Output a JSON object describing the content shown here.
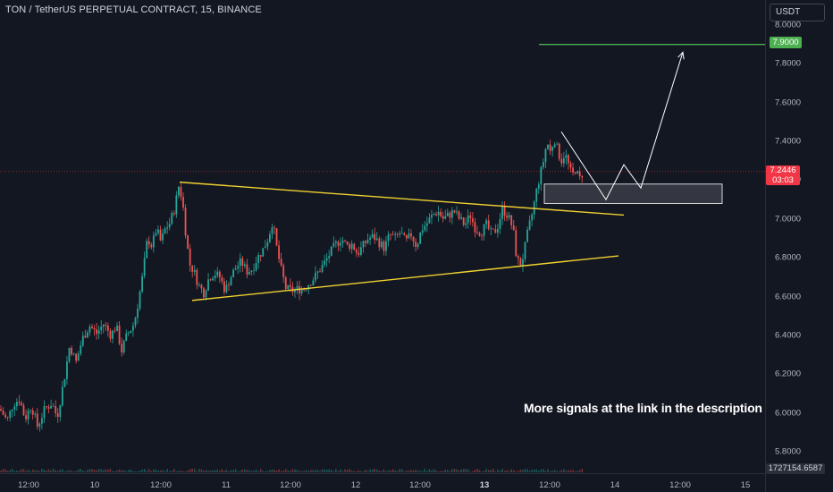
{
  "header": {
    "title": "TON / TetherUS PERPETUAL CONTRACT, 15, BINANCE",
    "currency": "USDT"
  },
  "annotation": {
    "note": "More signals at the link in the description"
  },
  "price_scale": {
    "current_price": "7.2446",
    "countdown": "03:03",
    "target_price": "7.9000",
    "volume_readout": "1727154.6587"
  },
  "colors": {
    "background": "#131722",
    "up_candle": "#26a69a",
    "down_candle": "#ef5350",
    "trendline": "#f0d130",
    "target_line": "#4caf50",
    "price_badge": "#f23645",
    "projection": "#ffffff"
  },
  "chart_data": {
    "type": "candlestick",
    "symbol": "TON / TetherUS PERPETUAL CONTRACT",
    "interval": "15",
    "exchange": "BINANCE",
    "y_ticks": [
      "8.0000",
      "7.8000",
      "7.6000",
      "7.4000",
      "7.2000",
      "7.0000",
      "6.8000",
      "6.6000",
      "6.4000",
      "6.2000",
      "6.0000",
      "5.8000"
    ],
    "x_ticks": [
      {
        "label": "12:00",
        "bold": false
      },
      {
        "label": "10",
        "bold": false
      },
      {
        "label": "12:00",
        "bold": false
      },
      {
        "label": "11",
        "bold": false
      },
      {
        "label": "12:00",
        "bold": false
      },
      {
        "label": "12",
        "bold": false
      },
      {
        "label": "12:00",
        "bold": false
      },
      {
        "label": "13",
        "bold": true
      },
      {
        "label": "12:00",
        "bold": false
      },
      {
        "label": "14",
        "bold": false
      },
      {
        "label": "12:00",
        "bold": false
      },
      {
        "label": "15",
        "bold": false
      }
    ],
    "ylim": [
      5.75,
      8.05
    ],
    "price_path": [
      [
        0,
        6.02
      ],
      [
        8,
        5.96
      ],
      [
        15,
        6.05
      ],
      [
        22,
        6.07
      ],
      [
        28,
        5.97
      ],
      [
        35,
        6.04
      ],
      [
        42,
        5.93
      ],
      [
        50,
        6.02
      ],
      [
        58,
        6.05
      ],
      [
        64,
        5.98
      ],
      [
        72,
        6.18
      ],
      [
        78,
        6.35
      ],
      [
        85,
        6.26
      ],
      [
        92,
        6.38
      ],
      [
        100,
        6.45
      ],
      [
        108,
        6.41
      ],
      [
        116,
        6.46
      ],
      [
        124,
        6.4
      ],
      [
        130,
        6.45
      ],
      [
        136,
        6.32
      ],
      [
        142,
        6.4
      ],
      [
        150,
        6.46
      ],
      [
        155,
        6.58
      ],
      [
        160,
        6.72
      ],
      [
        165,
        6.9
      ],
      [
        170,
        6.86
      ],
      [
        175,
        6.95
      ],
      [
        180,
        6.88
      ],
      [
        185,
        6.95
      ],
      [
        190,
        6.98
      ],
      [
        195,
        7.05
      ],
      [
        200,
        7.17
      ],
      [
        204,
        7.1
      ],
      [
        208,
        6.92
      ],
      [
        212,
        6.77
      ],
      [
        217,
        6.73
      ],
      [
        222,
        6.66
      ],
      [
        228,
        6.62
      ],
      [
        234,
        6.7
      ],
      [
        240,
        6.72
      ],
      [
        246,
        6.7
      ],
      [
        252,
        6.63
      ],
      [
        258,
        6.7
      ],
      [
        264,
        6.75
      ],
      [
        270,
        6.78
      ],
      [
        276,
        6.73
      ],
      [
        282,
        6.74
      ],
      [
        288,
        6.8
      ],
      [
        294,
        6.84
      ],
      [
        300,
        6.9
      ],
      [
        305,
        6.99
      ],
      [
        310,
        6.84
      ],
      [
        315,
        6.73
      ],
      [
        320,
        6.64
      ],
      [
        328,
        6.63
      ],
      [
        334,
        6.64
      ],
      [
        340,
        6.64
      ],
      [
        346,
        6.67
      ],
      [
        352,
        6.7
      ],
      [
        358,
        6.74
      ],
      [
        364,
        6.78
      ],
      [
        370,
        6.83
      ],
      [
        376,
        6.87
      ],
      [
        382,
        6.9
      ],
      [
        388,
        6.86
      ],
      [
        394,
        6.87
      ],
      [
        400,
        6.82
      ],
      [
        406,
        6.86
      ],
      [
        412,
        6.9
      ],
      [
        418,
        6.91
      ],
      [
        424,
        6.88
      ],
      [
        430,
        6.85
      ],
      [
        436,
        6.92
      ],
      [
        442,
        6.9
      ],
      [
        448,
        6.93
      ],
      [
        454,
        6.88
      ],
      [
        460,
        6.92
      ],
      [
        466,
        6.86
      ],
      [
        472,
        6.95
      ],
      [
        478,
        6.98
      ],
      [
        484,
        7.02
      ],
      [
        490,
        7.04
      ],
      [
        496,
        7.0
      ],
      [
        502,
        7.02
      ],
      [
        508,
        7.04
      ],
      [
        514,
        7.0
      ],
      [
        520,
        6.97
      ],
      [
        526,
        7.02
      ],
      [
        532,
        6.95
      ],
      [
        538,
        6.93
      ],
      [
        544,
        6.97
      ],
      [
        550,
        6.92
      ],
      [
        556,
        6.95
      ],
      [
        562,
        7.05
      ],
      [
        568,
        7.02
      ],
      [
        574,
        6.95
      ],
      [
        578,
        6.8
      ],
      [
        582,
        6.76
      ],
      [
        586,
        6.82
      ],
      [
        590,
        6.92
      ],
      [
        596,
        7.04
      ],
      [
        600,
        7.14
      ],
      [
        604,
        7.22
      ],
      [
        608,
        7.3
      ],
      [
        612,
        7.4
      ],
      [
        616,
        7.34
      ],
      [
        620,
        7.42
      ],
      [
        624,
        7.35
      ],
      [
        628,
        7.3
      ],
      [
        632,
        7.34
      ],
      [
        636,
        7.28
      ],
      [
        640,
        7.22
      ],
      [
        644,
        7.26
      ],
      [
        648,
        7.2
      ],
      [
        652,
        7.24
      ]
    ],
    "lower_trendline": [
      [
        215,
        6.58
      ],
      [
        692,
        6.81
      ]
    ],
    "upper_trendline": [
      [
        201,
        7.19
      ],
      [
        698,
        7.02
      ]
    ],
    "zone": {
      "x0": 609,
      "x1": 808,
      "y_low": 7.08,
      "y_high": 7.18
    },
    "projection_path": [
      [
        628,
        7.45
      ],
      [
        678,
        7.1
      ],
      [
        698,
        7.28
      ],
      [
        717,
        7.16
      ],
      [
        764,
        7.86
      ]
    ],
    "target_line": {
      "x0": 603,
      "x1": 857,
      "price": 7.9
    },
    "current_price_line": 7.2446
  }
}
